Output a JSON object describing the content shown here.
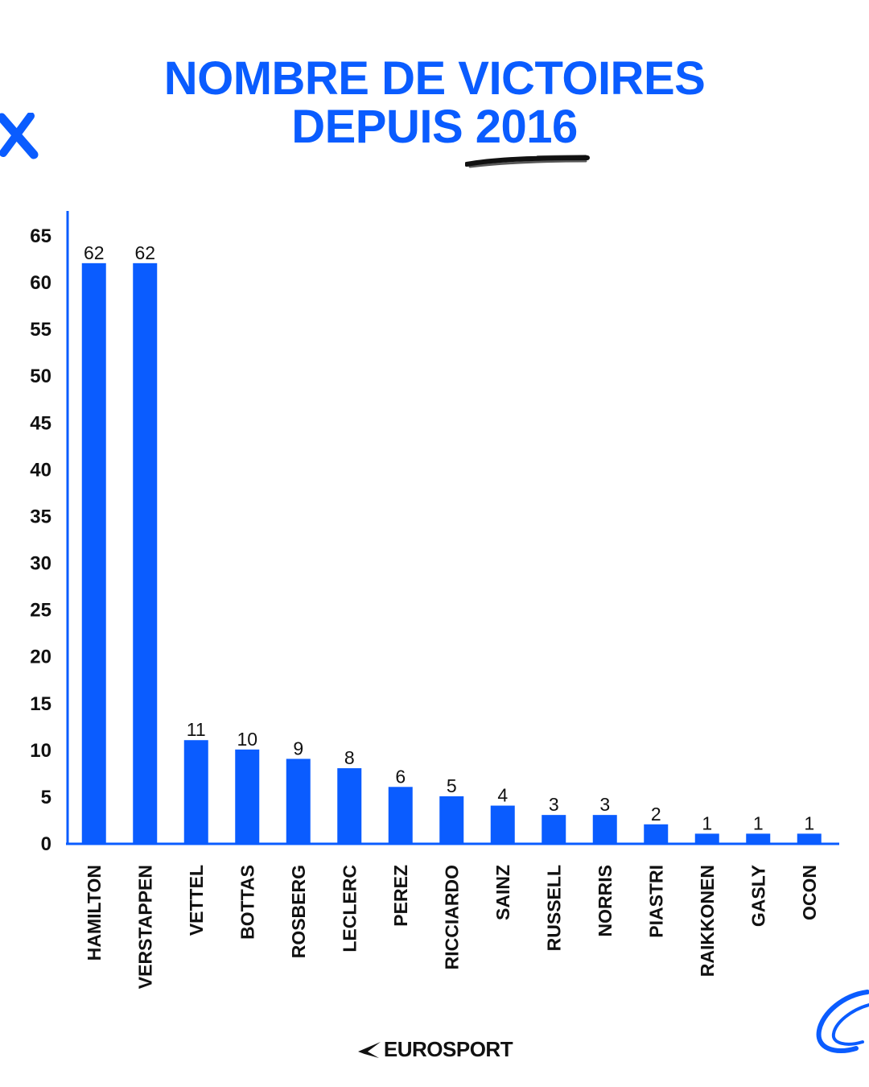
{
  "title": {
    "line1": "NOMBRE DE VICTOIRES",
    "line2": "DEPUIS 2016"
  },
  "brand": {
    "name": "EUROSPORT",
    "logo_icon": "eurosport-star-icon"
  },
  "colors": {
    "accent": "#0a5cff",
    "text": "#111111",
    "background": "#ffffff"
  },
  "chart_data": {
    "type": "bar",
    "title": "NOMBRE DE VICTOIRES DEPUIS 2016",
    "xlabel": "",
    "ylabel": "",
    "categories": [
      "HAMILTON",
      "VERSTAPPEN",
      "VETTEL",
      "BOTTAS",
      "ROSBERG",
      "LECLERC",
      "PEREZ",
      "RICCIARDO",
      "SAINZ",
      "RUSSELL",
      "NORRIS",
      "PIASTRI",
      "RAIKKONEN",
      "GASLY",
      "OCON"
    ],
    "values": [
      62,
      62,
      11,
      10,
      9,
      8,
      6,
      5,
      4,
      3,
      3,
      2,
      1,
      1,
      1
    ],
    "ylim": [
      0,
      65
    ],
    "yticks": [
      0,
      5,
      10,
      15,
      20,
      25,
      30,
      35,
      40,
      45,
      50,
      55,
      60,
      65
    ],
    "grid": false,
    "data_labels": true,
    "x_label_orientation": "vertical",
    "bar_color": "#0a5cff"
  }
}
